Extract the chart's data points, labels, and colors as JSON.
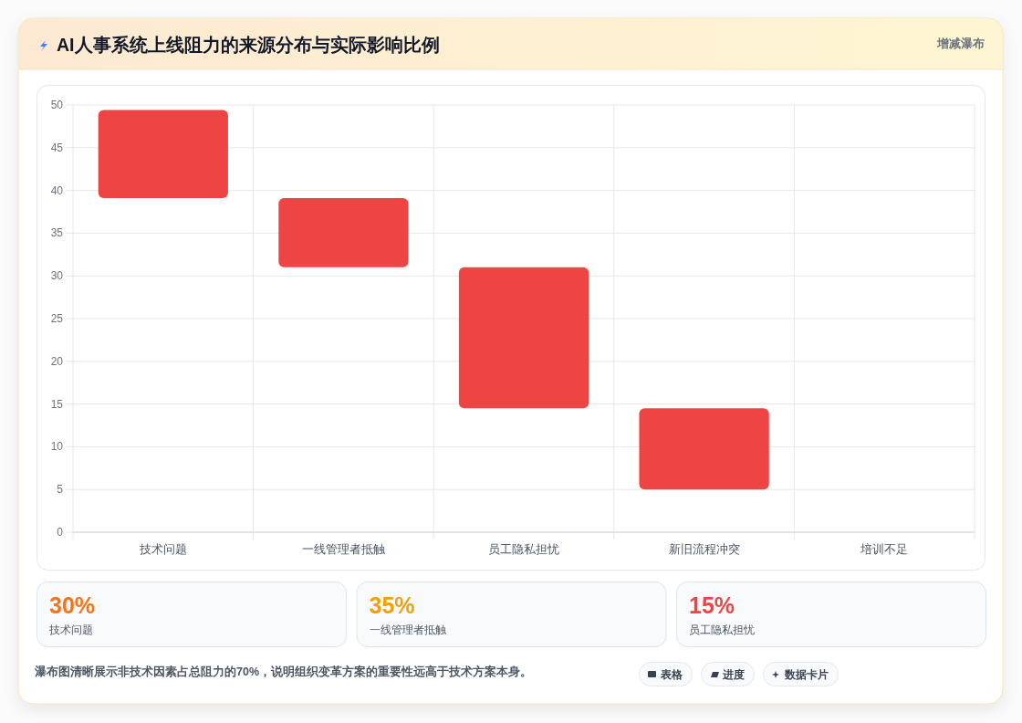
{
  "chart_data": [
    {
      "type": "bar",
      "title": "AI人事系统上线阻力的来源分布与实际影响比例",
      "subtitle": "增减瀑布",
      "categories": [
        "技术问题",
        "一线管理者抵触",
        "员工隐私担忧",
        "新旧流程冲突",
        "培训不足"
      ],
      "values": [
        10.3,
        8.1,
        16.5,
        9.5,
        null
      ],
      "base": [
        39.1,
        31,
        14.5,
        5,
        null
      ],
      "color": "#ef4444",
      "ylim": [
        0,
        50
      ],
      "yticks": [
        0,
        5,
        10,
        15,
        20,
        25,
        30,
        35,
        40,
        45,
        50
      ],
      "grid": true
    },
    {
      "type": "other",
      "title": "30%",
      "subtitle": "技术问题",
      "color": "#f97316"
    },
    {
      "type": "other",
      "title": "35%",
      "subtitle": "一线管理者抵触",
      "color": "#f59e0b"
    },
    {
      "type": "other",
      "title": "15%",
      "subtitle": "员工隐私担忧",
      "color": "#ef4444"
    },
    {
      "type": "other",
      "annotations": [
        "瀑布图清晰展示非技术因素占总阻力的70%，说明组织变革方案的重要性远高于技术方案本身。",
        "表格",
        "进度",
        "数据卡片"
      ]
    }
  ]
}
